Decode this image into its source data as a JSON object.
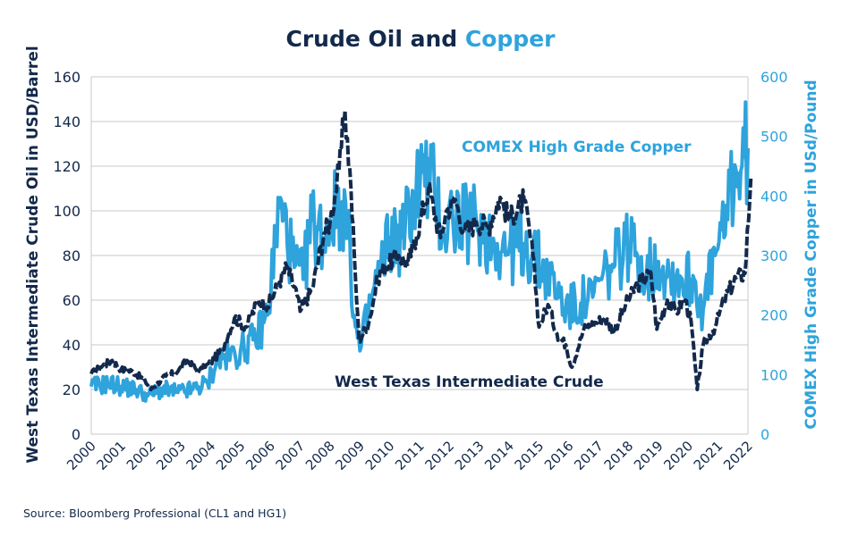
{
  "colors": {
    "oil": "#13294b",
    "copper": "#2ea3dc",
    "grid": "#c8c8c8"
  },
  "title": {
    "part1": "Crude Oil",
    "part2": " and ",
    "part3": "Copper"
  },
  "source": "Source: Bloomberg Professional (CL1 and HG1)",
  "chart_data": {
    "type": "line",
    "title": "Crude Oil and Copper",
    "x_axis": {
      "ticks": [
        "2000",
        "2001",
        "2002",
        "2003",
        "2004",
        "2005",
        "2006",
        "2007",
        "2008",
        "2009",
        "2010",
        "2011",
        "2012",
        "2013",
        "2014",
        "2015",
        "2016",
        "2017",
        "2018",
        "2019",
        "2020",
        "2021",
        "2022"
      ],
      "range": [
        2000,
        2022
      ]
    },
    "y_left": {
      "label": "West Texas Intermediate Crude Oil in USD/Barrel",
      "ticks": [
        0,
        20,
        40,
        60,
        80,
        100,
        120,
        140,
        160
      ],
      "range": [
        0,
        160
      ]
    },
    "y_right": {
      "label": "COMEX High Grade Copper in USd/Pound",
      "ticks": [
        0,
        100,
        200,
        300,
        400,
        500,
        600
      ],
      "range": [
        0,
        600
      ]
    },
    "grid": "horizontal",
    "annotations": [
      "COMEX High Grade Copper",
      "West Texas Intermediate Crude"
    ],
    "series": [
      {
        "name": "West Texas Intermediate Crude",
        "axis": "left",
        "style": "dashed",
        "x": [
          2000.0,
          2000.3,
          2000.7,
          2001.0,
          2001.4,
          2001.8,
          2002.0,
          2002.5,
          2002.9,
          2003.2,
          2003.6,
          2004.0,
          2004.4,
          2004.8,
          2005.2,
          2005.6,
          2005.9,
          2006.3,
          2006.55,
          2006.9,
          2007.0,
          2007.4,
          2007.8,
          2008.0,
          2008.3,
          2008.5,
          2008.7,
          2008.85,
          2008.97,
          2009.3,
          2009.6,
          2009.9,
          2010.3,
          2010.6,
          2010.9,
          2011.3,
          2011.7,
          2011.9,
          2012.2,
          2012.5,
          2012.9,
          2013.3,
          2013.7,
          2014.0,
          2014.5,
          2014.8,
          2015.0,
          2015.3,
          2015.6,
          2015.9,
          2016.1,
          2016.5,
          2016.9,
          2017.2,
          2017.5,
          2017.9,
          2018.3,
          2018.75,
          2018.95,
          2019.3,
          2019.6,
          2019.9,
          2020.1,
          2020.3,
          2020.5,
          2020.9,
          2021.2,
          2021.6,
          2021.9,
          2022.1
        ],
        "values": [
          27,
          30,
          33,
          29,
          28,
          24,
          20,
          26,
          28,
          33,
          28,
          32,
          38,
          52,
          48,
          60,
          57,
          68,
          75,
          62,
          55,
          65,
          90,
          95,
          118,
          145,
          110,
          70,
          42,
          50,
          70,
          76,
          80,
          76,
          89,
          110,
          88,
          100,
          105,
          90,
          95,
          93,
          106,
          96,
          105,
          80,
          48,
          58,
          45,
          40,
          30,
          47,
          50,
          52,
          46,
          58,
          67,
          72,
          47,
          60,
          55,
          60,
          50,
          20,
          40,
          48,
          60,
          70,
          72,
          115
        ],
        "note": "approximate values read from the chart"
      },
      {
        "name": "COMEX High Grade Copper",
        "axis": "right",
        "style": "solid",
        "x": [
          2000.0,
          2000.6,
          2001.0,
          2001.5,
          2001.9,
          2002.4,
          2002.9,
          2003.4,
          2003.9,
          2004.2,
          2004.6,
          2005.0,
          2005.5,
          2005.9,
          2006.3,
          2006.45,
          2006.8,
          2007.1,
          2007.4,
          2007.8,
          2008.0,
          2008.4,
          2008.6,
          2008.85,
          2009.0,
          2009.4,
          2009.7,
          2010.0,
          2010.4,
          2010.8,
          2011.1,
          2011.5,
          2011.8,
          2012.1,
          2012.5,
          2012.9,
          2013.3,
          2013.6,
          2014.0,
          2014.5,
          2014.9,
          2015.3,
          2015.7,
          2016.0,
          2016.4,
          2016.8,
          2017.1,
          2017.5,
          2017.9,
          2018.3,
          2018.6,
          2019.0,
          2019.4,
          2019.8,
          2020.2,
          2020.5,
          2020.9,
          2021.2,
          2021.4,
          2021.8,
          2022.0
        ],
        "values": [
          80,
          85,
          80,
          75,
          65,
          75,
          70,
          75,
          85,
          125,
          130,
          140,
          160,
          200,
          380,
          360,
          280,
          260,
          360,
          330,
          360,
          390,
          340,
          180,
          140,
          230,
          280,
          330,
          330,
          400,
          440,
          410,
          340,
          370,
          350,
          360,
          330,
          320,
          310,
          320,
          290,
          270,
          230,
          210,
          220,
          230,
          260,
          280,
          320,
          300,
          270,
          290,
          270,
          260,
          260,
          210,
          300,
          330,
          420,
          450,
          480
        ],
        "note": "approximate values read from the chart"
      }
    ]
  }
}
